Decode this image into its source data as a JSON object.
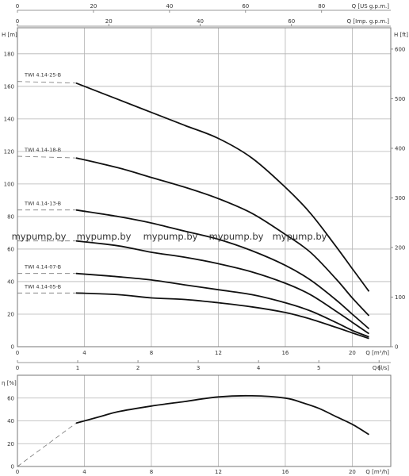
{
  "chart_data": [
    {
      "type": "line",
      "name": "head-chart",
      "title": "",
      "xlabel": "Q [m³/h]",
      "ylabel": "H [m]",
      "y2label": "H [ft]",
      "top_axis_1_label": "Q [US g.p.m.]",
      "top_axis_2_label": "Q [Imp. g.p.m.]",
      "xlim": [
        0,
        22.3
      ],
      "ylim": [
        0,
        196
      ],
      "x_ticks": [
        0,
        4,
        8,
        12,
        16,
        20
      ],
      "y_ticks": [
        0,
        20,
        40,
        60,
        80,
        100,
        120,
        140,
        160,
        180
      ],
      "y2_ticks": [
        0,
        100,
        200,
        300,
        400,
        500,
        600
      ],
      "top_axis_1_ticks": [
        0,
        20,
        40,
        60,
        80
      ],
      "top_axis_2_ticks": [
        0,
        20,
        40,
        60
      ],
      "grid": true,
      "series": [
        {
          "name": "TWI 4.14-25-B",
          "x": [
            3.5,
            6,
            8,
            10,
            12,
            14,
            16,
            17.5,
            19,
            20,
            21
          ],
          "y": [
            162,
            152,
            144,
            136,
            128,
            116,
            98,
            82,
            62,
            48,
            34
          ],
          "shutoff": 163
        },
        {
          "name": "TWI 4.14-18-B",
          "x": [
            3.5,
            6,
            8,
            10,
            12,
            14,
            16,
            17.5,
            19,
            20,
            21
          ],
          "y": [
            116,
            110,
            104,
            98,
            91,
            82,
            69,
            58,
            42,
            30,
            19
          ],
          "shutoff": 117
        },
        {
          "name": "TWI 4.14-13-B",
          "x": [
            3.5,
            6,
            8,
            10,
            12,
            14,
            16,
            17.5,
            19,
            20,
            21
          ],
          "y": [
            84,
            80,
            76,
            71,
            66,
            59,
            50,
            41,
            29,
            20,
            11
          ],
          "shutoff": 84
        },
        {
          "name": "",
          "x": [
            3.5,
            6,
            8,
            10,
            12,
            14,
            16,
            17.5,
            19,
            20,
            21
          ],
          "y": [
            65,
            62,
            58,
            55,
            51,
            46,
            39,
            32,
            22,
            15,
            8
          ],
          "shutoff": 65
        },
        {
          "name": "TWI 4.14-07-B",
          "x": [
            3.5,
            6,
            8,
            10,
            12,
            14,
            16,
            17.5,
            19,
            20,
            21
          ],
          "y": [
            45,
            43,
            41,
            38,
            35,
            32,
            27,
            22,
            15,
            10,
            6
          ],
          "shutoff": 45
        },
        {
          "name": "TWI 4.14-05-B",
          "x": [
            3.5,
            6,
            8,
            10,
            12,
            14,
            16,
            17.5,
            19,
            20,
            21
          ],
          "y": [
            33,
            32,
            30,
            29,
            27,
            24.5,
            21,
            17,
            12,
            8.5,
            5
          ],
          "shutoff": 33
        }
      ]
    },
    {
      "type": "line",
      "name": "efficiency-chart",
      "title": "",
      "xlabel": "Q [m³/h]",
      "ylabel": "η [%]",
      "top_axis_label": "Q [l/s]",
      "xlim": [
        0,
        22.3
      ],
      "ylim": [
        0,
        80
      ],
      "x_ticks": [
        0,
        4,
        8,
        12,
        16,
        20
      ],
      "y_ticks": [
        0,
        20,
        40,
        60
      ],
      "top_axis_ticks": [
        0,
        1,
        2,
        3,
        4,
        5,
        6
      ],
      "grid": true,
      "series": [
        {
          "name": "",
          "x": [
            3.5,
            5,
            6,
            8,
            10,
            12,
            14,
            16,
            17,
            18,
            19,
            20,
            21
          ],
          "y": [
            38,
            44,
            48,
            53,
            57,
            61,
            62,
            60,
            56,
            51,
            44,
            37,
            28
          ],
          "dashed_from_origin": true
        }
      ]
    }
  ],
  "watermark": [
    "mypump.by",
    "mypump.by",
    "mypump.by",
    "mypump.by",
    "mypump.by"
  ]
}
